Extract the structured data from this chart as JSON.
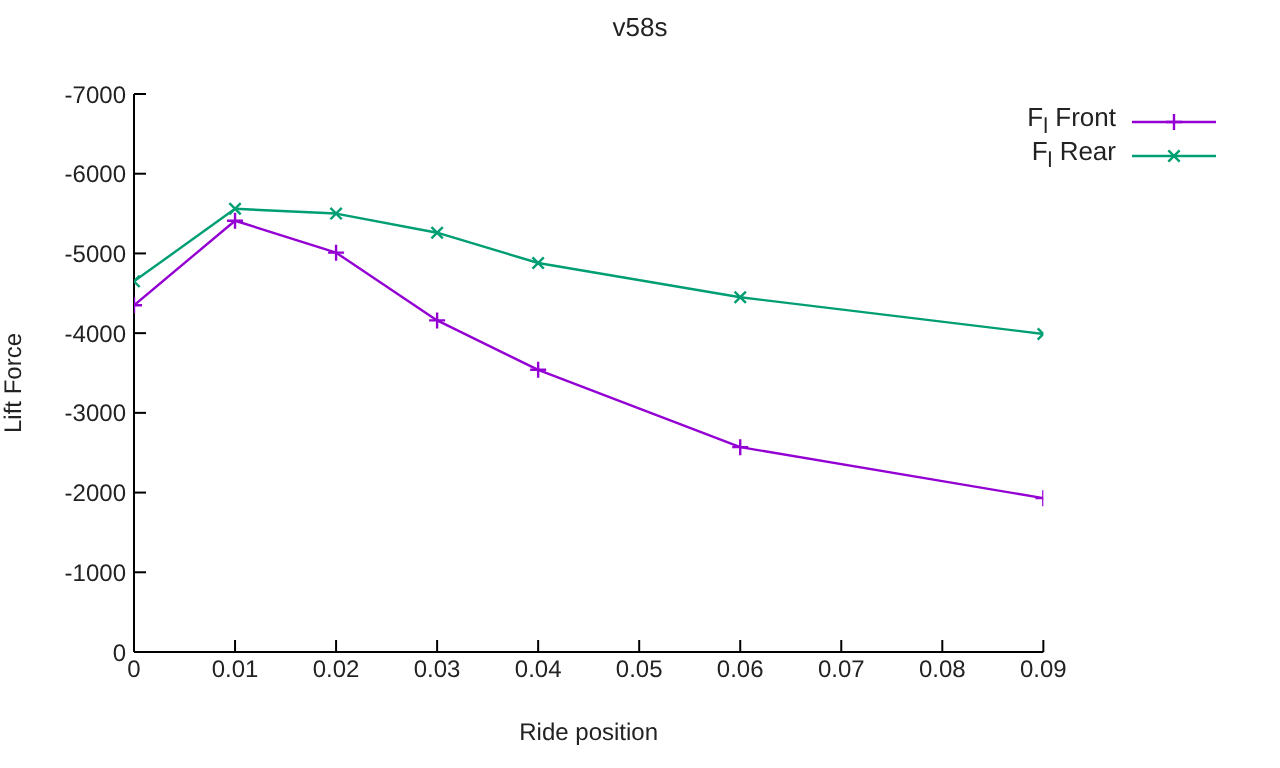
{
  "chart_data": {
    "type": "line",
    "title": "v58s",
    "xlabel": "Ride position",
    "ylabel": "Lift Force",
    "x": [
      0,
      0.01,
      0.02,
      0.03,
      0.04,
      0.06,
      0.09
    ],
    "series": [
      {
        "name": "F$_{l}$ Front",
        "color": "#9400d3",
        "values": [
          -4350,
          -5410,
          -5010,
          -4160,
          -3540,
          -2570,
          -1930
        ]
      },
      {
        "name": "F$_{l}$ Rear",
        "color": "#009e73",
        "values": [
          -4650,
          -5560,
          -5500,
          -5260,
          -4880,
          -4450,
          -3990
        ]
      }
    ],
    "xlim": [
      0,
      0.09
    ],
    "xticks": [
      0,
      0.01,
      0.02,
      0.03,
      0.04,
      0.05,
      0.06,
      0.07,
      0.08,
      0.09
    ],
    "ylim": [
      0,
      -7000
    ],
    "yticks": [
      0,
      -1000,
      -2000,
      -3000,
      -4000,
      -5000,
      -6000,
      -7000
    ],
    "grid": false,
    "legend": "top right",
    "marker": "cross",
    "line_style": "solid"
  }
}
